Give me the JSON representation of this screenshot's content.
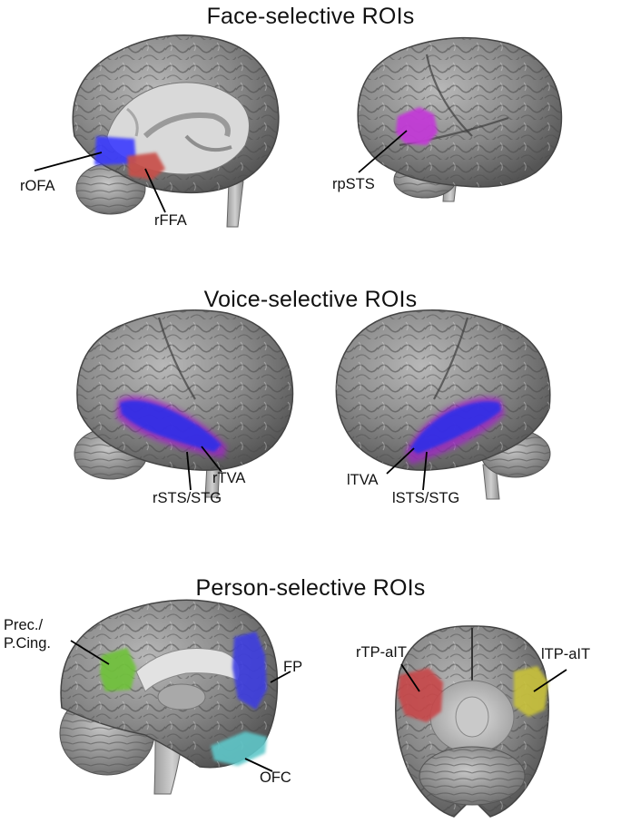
{
  "sections": {
    "face": {
      "title": "Face-selective ROIs",
      "labels": {
        "rofa": "rOFA",
        "rffa": "rFFA",
        "rpsts": "rpSTS"
      }
    },
    "voice": {
      "title": "Voice-selective ROIs",
      "labels": {
        "rtva": "rTVA",
        "rsts_stg": "rSTS/STG",
        "ltva": "lTVA",
        "lsts_stg": "lSTS/STG"
      }
    },
    "person": {
      "title": "Person-selective ROIs",
      "labels": {
        "prec": "Prec./",
        "pcing": "P.Cing.",
        "fp": "FP",
        "ofc": "OFC",
        "rtp": "rTP-aIT",
        "ltp": "lTP-aIT"
      }
    }
  },
  "roi_colors": {
    "ofa": "#3b3bff",
    "ffa": "#c8504a",
    "psts": "#c23ad6",
    "tva": "#2e2ee8",
    "sts_stg": "#a020c8",
    "precuneus": "#6fc23a",
    "fp": "#3c3ce0",
    "ofc": "#5fc7c9",
    "rtp": "#c8464a",
    "ltp": "#c9c23a"
  }
}
